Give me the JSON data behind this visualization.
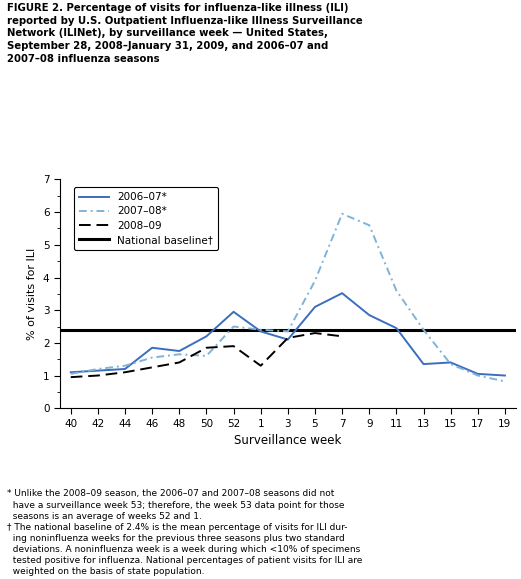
{
  "title": "FIGURE 2. Percentage of visits for influenza-like illness (ILI)\nreported by U.S. Outpatient Influenza-like Illness Surveillance\nNetwork (ILINet), by surveillance week — United States,\nSeptember 28, 2008–January 31, 2009, and 2006–07 and\n2007–08 influenza seasons",
  "xlabel": "Surveillance week",
  "ylabel": "% of visits for ILI",
  "ylim": [
    0,
    7
  ],
  "yticks": [
    0,
    1,
    2,
    3,
    4,
    5,
    6,
    7
  ],
  "national_baseline": 2.4,
  "footnote1": "* Unlike the 2008–09 season, the 2006–07 and 2007–08 seasons did not\n  have a surveillance week 53; therefore, the week 53 data point for those\n  seasons is an average of weeks 52 and 1.",
  "footnote2": "† The national baseline of 2.4% is the mean percentage of visits for ILI dur-\n  ing noninfluenza weeks for the previous three seasons plus two standard\n  deviations. A noninfluenza week is a week during which <10% of specimens\n  tested positive for influenza. National percentages of patient visits for ILI are\n  weighted on the basis of state population.",
  "xtick_labels": [
    "40",
    "42",
    "44",
    "46",
    "48",
    "50",
    "52",
    "1",
    "3",
    "5",
    "7",
    "9",
    "11",
    "13",
    "15",
    "17",
    "19"
  ],
  "x_positions": [
    0,
    1,
    2,
    3,
    4,
    5,
    6,
    7,
    8,
    9,
    10,
    11,
    12,
    13,
    14,
    15,
    16
  ],
  "season_2006_07_x": [
    0,
    1,
    2,
    3,
    4,
    5,
    6,
    7,
    8,
    9,
    10,
    11,
    12,
    13,
    14,
    15,
    16
  ],
  "season_2006_07_y": [
    1.1,
    1.15,
    1.2,
    1.85,
    1.75,
    2.2,
    2.95,
    2.35,
    2.1,
    3.1,
    3.52,
    2.85,
    2.45,
    1.35,
    1.4,
    1.05,
    1.0
  ],
  "season_2007_08_x": [
    0,
    1,
    2,
    3,
    4,
    5,
    6,
    7,
    8,
    9,
    10,
    11,
    12,
    13,
    14,
    15,
    16
  ],
  "season_2007_08_y": [
    1.05,
    1.2,
    1.3,
    1.55,
    1.65,
    1.6,
    2.5,
    2.4,
    2.35,
    3.9,
    5.95,
    5.6,
    3.6,
    2.4,
    1.35,
    1.0,
    0.82
  ],
  "season_2008_09_x": [
    0,
    1,
    2,
    3,
    4,
    5,
    6,
    7,
    8,
    9,
    10
  ],
  "season_2008_09_y": [
    0.95,
    1.0,
    1.1,
    1.25,
    1.4,
    1.85,
    1.9,
    1.3,
    2.15,
    2.3,
    2.2
  ],
  "color_blue_solid": "#3B6EBD",
  "color_blue_light": "#7FB3D9",
  "color_black": "#000000"
}
